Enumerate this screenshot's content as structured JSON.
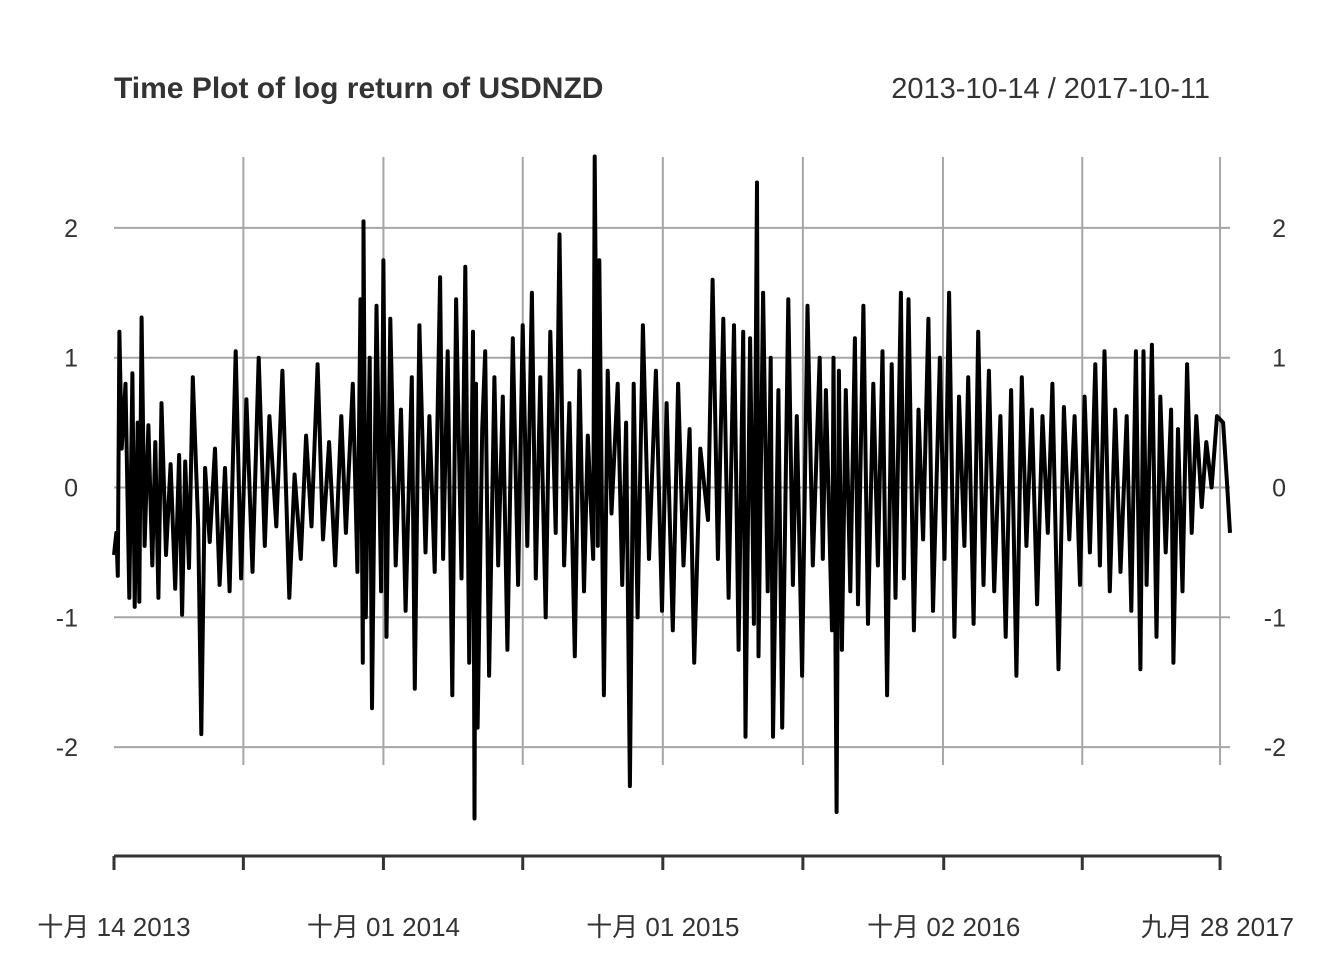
{
  "chart_data": {
    "type": "line",
    "title": "Time Plot of log return of USDNZD",
    "date_range": "2013-10-14 / 2017-10-11",
    "start_date": "2013-10-14",
    "end_date": "2017-10-11",
    "ylim": [
      -2.6,
      2.6
    ],
    "y_ticks": [
      {
        "value": 2,
        "label": "2"
      },
      {
        "value": 1,
        "label": "1"
      },
      {
        "value": 0,
        "label": "0"
      },
      {
        "value": -1,
        "label": "-1"
      },
      {
        "value": -2,
        "label": "-2"
      }
    ],
    "grid_dates": [
      "2014-04-01",
      "2014-10-01",
      "2015-04-01",
      "2015-10-01",
      "2016-04-01",
      "2016-10-01",
      "2017-04-01",
      "2017-09-28"
    ],
    "x_ticks": [
      {
        "date": "2013-10-14",
        "label": "十月 14 2013"
      },
      {
        "date": "2014-10-01",
        "label": "十月 01 2014"
      },
      {
        "date": "2015-10-01",
        "label": "十月 01 2015"
      },
      {
        "date": "2016-10-02",
        "label": "十月 02 2016"
      },
      {
        "date": "2017-09-28",
        "label": "九月 28 2017"
      }
    ],
    "x_minor_ticks": [
      "2014-04-01",
      "2015-04-01",
      "2016-04-01",
      "2017-04-01"
    ],
    "grid": true,
    "series": [
      {
        "color": "#000000",
        "points": [
          [
            "2013-10-14",
            -0.52
          ],
          [
            "2013-10-17",
            -0.35
          ],
          [
            "2013-10-19",
            -0.68
          ],
          [
            "2013-10-21",
            1.2
          ],
          [
            "2013-10-24",
            0.3
          ],
          [
            "2013-10-29",
            0.8
          ],
          [
            "2013-11-03",
            -0.85
          ],
          [
            "2013-11-07",
            0.88
          ],
          [
            "2013-11-10",
            -0.92
          ],
          [
            "2013-11-14",
            0.5
          ],
          [
            "2013-11-16",
            -0.88
          ],
          [
            "2013-11-19",
            1.31
          ],
          [
            "2013-11-23",
            -0.45
          ],
          [
            "2013-11-28",
            0.48
          ],
          [
            "2013-12-03",
            -0.6
          ],
          [
            "2013-12-07",
            0.35
          ],
          [
            "2013-12-11",
            -0.85
          ],
          [
            "2013-12-15",
            0.65
          ],
          [
            "2013-12-21",
            -0.52
          ],
          [
            "2013-12-27",
            0.18
          ],
          [
            "2014-01-02",
            -0.78
          ],
          [
            "2014-01-07",
            0.25
          ],
          [
            "2014-01-11",
            -0.98
          ],
          [
            "2014-01-15",
            0.2
          ],
          [
            "2014-01-20",
            -0.62
          ],
          [
            "2014-01-25",
            0.85
          ],
          [
            "2014-02-01",
            -0.3
          ],
          [
            "2014-02-05",
            -1.9
          ],
          [
            "2014-02-10",
            0.15
          ],
          [
            "2014-02-16",
            -0.42
          ],
          [
            "2014-02-23",
            0.3
          ],
          [
            "2014-03-01",
            -0.75
          ],
          [
            "2014-03-08",
            0.15
          ],
          [
            "2014-03-14",
            -0.8
          ],
          [
            "2014-03-22",
            1.05
          ],
          [
            "2014-03-29",
            -0.7
          ],
          [
            "2014-04-05",
            0.68
          ],
          [
            "2014-04-13",
            -0.65
          ],
          [
            "2014-04-21",
            1.0
          ],
          [
            "2014-04-29",
            -0.45
          ],
          [
            "2014-05-05",
            0.55
          ],
          [
            "2014-05-14",
            -0.3
          ],
          [
            "2014-05-22",
            0.9
          ],
          [
            "2014-05-31",
            -0.85
          ],
          [
            "2014-06-07",
            0.1
          ],
          [
            "2014-06-15",
            -0.55
          ],
          [
            "2014-06-22",
            0.4
          ],
          [
            "2014-06-29",
            -0.3
          ],
          [
            "2014-07-07",
            0.95
          ],
          [
            "2014-07-14",
            -0.4
          ],
          [
            "2014-07-22",
            0.35
          ],
          [
            "2014-07-30",
            -0.6
          ],
          [
            "2014-08-07",
            0.55
          ],
          [
            "2014-08-13",
            -0.35
          ],
          [
            "2014-08-22",
            0.8
          ],
          [
            "2014-08-28",
            -0.65
          ],
          [
            "2014-09-01",
            1.45
          ],
          [
            "2014-09-04",
            -1.35
          ],
          [
            "2014-09-05",
            2.05
          ],
          [
            "2014-09-08",
            -1.0
          ],
          [
            "2014-09-13",
            1.0
          ],
          [
            "2014-09-16",
            -1.7
          ],
          [
            "2014-09-22",
            1.4
          ],
          [
            "2014-09-28",
            -0.8
          ],
          [
            "2014-10-01",
            1.75
          ],
          [
            "2014-10-05",
            -1.15
          ],
          [
            "2014-10-10",
            1.3
          ],
          [
            "2014-10-17",
            -0.6
          ],
          [
            "2014-10-24",
            0.6
          ],
          [
            "2014-10-30",
            -0.95
          ],
          [
            "2014-11-07",
            0.85
          ],
          [
            "2014-11-11",
            -1.55
          ],
          [
            "2014-11-17",
            1.25
          ],
          [
            "2014-11-25",
            -0.5
          ],
          [
            "2014-11-30",
            0.55
          ],
          [
            "2014-12-07",
            -0.65
          ],
          [
            "2014-12-14",
            1.62
          ],
          [
            "2014-12-18",
            -0.55
          ],
          [
            "2014-12-24",
            1.05
          ],
          [
            "2014-12-30",
            -1.6
          ],
          [
            "2015-01-04",
            1.45
          ],
          [
            "2015-01-11",
            -0.7
          ],
          [
            "2015-01-16",
            1.7
          ],
          [
            "2015-01-21",
            -1.35
          ],
          [
            "2015-01-26",
            1.2
          ],
          [
            "2015-01-28",
            -2.55
          ],
          [
            "2015-01-30",
            0.8
          ],
          [
            "2015-02-01",
            -1.85
          ],
          [
            "2015-02-07",
            0.45
          ],
          [
            "2015-02-11",
            1.05
          ],
          [
            "2015-02-16",
            -1.45
          ],
          [
            "2015-02-23",
            0.85
          ],
          [
            "2015-02-28",
            -0.6
          ],
          [
            "2015-03-06",
            0.7
          ],
          [
            "2015-03-12",
            -1.25
          ],
          [
            "2015-03-19",
            1.15
          ],
          [
            "2015-03-26",
            -0.75
          ],
          [
            "2015-04-01",
            1.25
          ],
          [
            "2015-04-07",
            -0.45
          ],
          [
            "2015-04-13",
            1.5
          ],
          [
            "2015-04-18",
            -0.7
          ],
          [
            "2015-04-24",
            0.85
          ],
          [
            "2015-05-01",
            -1.0
          ],
          [
            "2015-05-07",
            1.2
          ],
          [
            "2015-05-14",
            -0.35
          ],
          [
            "2015-05-19",
            1.95
          ],
          [
            "2015-05-25",
            -0.6
          ],
          [
            "2015-06-01",
            0.65
          ],
          [
            "2015-06-08",
            -1.3
          ],
          [
            "2015-06-14",
            0.9
          ],
          [
            "2015-06-20",
            -0.8
          ],
          [
            "2015-06-25",
            0.4
          ],
          [
            "2015-07-02",
            -0.55
          ],
          [
            "2015-07-04",
            2.55
          ],
          [
            "2015-07-08",
            -0.45
          ],
          [
            "2015-07-10",
            1.75
          ],
          [
            "2015-07-16",
            -1.6
          ],
          [
            "2015-07-21",
            0.9
          ],
          [
            "2015-07-26",
            -0.2
          ],
          [
            "2015-08-03",
            0.8
          ],
          [
            "2015-08-09",
            -0.75
          ],
          [
            "2015-08-14",
            0.5
          ],
          [
            "2015-08-19",
            -2.3
          ],
          [
            "2015-08-24",
            0.8
          ],
          [
            "2015-08-29",
            -1.0
          ],
          [
            "2015-09-05",
            1.25
          ],
          [
            "2015-09-13",
            -0.55
          ],
          [
            "2015-09-22",
            0.9
          ],
          [
            "2015-09-30",
            -0.95
          ],
          [
            "2015-10-06",
            0.65
          ],
          [
            "2015-10-14",
            -1.1
          ],
          [
            "2015-10-21",
            0.8
          ],
          [
            "2015-10-28",
            -0.6
          ],
          [
            "2015-11-05",
            0.45
          ],
          [
            "2015-11-11",
            -1.35
          ],
          [
            "2015-11-19",
            0.3
          ],
          [
            "2015-11-29",
            -0.25
          ],
          [
            "2015-12-05",
            1.6
          ],
          [
            "2015-12-12",
            -0.55
          ],
          [
            "2015-12-19",
            1.3
          ],
          [
            "2015-12-26",
            -0.85
          ],
          [
            "2016-01-02",
            1.25
          ],
          [
            "2016-01-08",
            -1.25
          ],
          [
            "2016-01-14",
            1.2
          ],
          [
            "2016-01-17",
            -1.92
          ],
          [
            "2016-01-23",
            1.15
          ],
          [
            "2016-01-28",
            -1.05
          ],
          [
            "2016-02-01",
            2.35
          ],
          [
            "2016-02-03",
            -1.3
          ],
          [
            "2016-02-09",
            1.5
          ],
          [
            "2016-02-15",
            -0.8
          ],
          [
            "2016-02-19",
            1.0
          ],
          [
            "2016-02-22",
            -1.92
          ],
          [
            "2016-02-29",
            0.75
          ],
          [
            "2016-03-05",
            -1.85
          ],
          [
            "2016-03-13",
            1.45
          ],
          [
            "2016-03-19",
            -0.75
          ],
          [
            "2016-03-24",
            0.55
          ],
          [
            "2016-03-31",
            -1.45
          ],
          [
            "2016-04-07",
            1.4
          ],
          [
            "2016-04-14",
            -0.6
          ],
          [
            "2016-04-23",
            1.0
          ],
          [
            "2016-04-27",
            -0.55
          ],
          [
            "2016-05-01",
            0.75
          ],
          [
            "2016-05-09",
            -1.1
          ],
          [
            "2016-05-11",
            1.0
          ],
          [
            "2016-05-15",
            -2.5
          ],
          [
            "2016-05-18",
            0.9
          ],
          [
            "2016-05-22",
            -1.25
          ],
          [
            "2016-05-27",
            0.75
          ],
          [
            "2016-06-02",
            -0.8
          ],
          [
            "2016-06-08",
            1.15
          ],
          [
            "2016-06-12",
            -0.9
          ],
          [
            "2016-06-19",
            1.4
          ],
          [
            "2016-06-25",
            -1.05
          ],
          [
            "2016-07-02",
            0.8
          ],
          [
            "2016-07-08",
            -0.6
          ],
          [
            "2016-07-14",
            1.05
          ],
          [
            "2016-07-20",
            -1.6
          ],
          [
            "2016-07-26",
            0.95
          ],
          [
            "2016-07-31",
            -0.85
          ],
          [
            "2016-08-07",
            1.5
          ],
          [
            "2016-08-11",
            -0.7
          ],
          [
            "2016-08-17",
            1.45
          ],
          [
            "2016-08-24",
            -1.1
          ],
          [
            "2016-08-30",
            0.6
          ],
          [
            "2016-09-05",
            -0.4
          ],
          [
            "2016-09-12",
            1.3
          ],
          [
            "2016-09-18",
            -0.95
          ],
          [
            "2016-09-27",
            1.0
          ],
          [
            "2016-10-03",
            -0.55
          ],
          [
            "2016-10-09",
            1.5
          ],
          [
            "2016-10-16",
            -1.15
          ],
          [
            "2016-10-22",
            0.7
          ],
          [
            "2016-10-29",
            -0.45
          ],
          [
            "2016-11-03",
            0.85
          ],
          [
            "2016-11-10",
            -1.05
          ],
          [
            "2016-11-16",
            1.2
          ],
          [
            "2016-11-23",
            -0.75
          ],
          [
            "2016-11-30",
            0.9
          ],
          [
            "2016-12-07",
            -0.8
          ],
          [
            "2016-12-15",
            0.55
          ],
          [
            "2016-12-22",
            -1.15
          ],
          [
            "2016-12-29",
            0.75
          ],
          [
            "2017-01-05",
            -1.45
          ],
          [
            "2017-01-12",
            0.85
          ],
          [
            "2017-01-18",
            -0.45
          ],
          [
            "2017-01-25",
            0.6
          ],
          [
            "2017-02-01",
            -0.9
          ],
          [
            "2017-02-08",
            0.55
          ],
          [
            "2017-02-15",
            -0.35
          ],
          [
            "2017-02-21",
            0.8
          ],
          [
            "2017-03-01",
            -1.4
          ],
          [
            "2017-03-08",
            0.62
          ],
          [
            "2017-03-15",
            -0.4
          ],
          [
            "2017-03-22",
            0.55
          ],
          [
            "2017-03-29",
            -0.75
          ],
          [
            "2017-04-04",
            0.7
          ],
          [
            "2017-04-11",
            -0.5
          ],
          [
            "2017-04-18",
            0.95
          ],
          [
            "2017-04-24",
            -0.6
          ],
          [
            "2017-04-30",
            1.05
          ],
          [
            "2017-05-07",
            -0.8
          ],
          [
            "2017-05-14",
            0.6
          ],
          [
            "2017-05-21",
            -0.65
          ],
          [
            "2017-05-29",
            0.55
          ],
          [
            "2017-06-04",
            -0.95
          ],
          [
            "2017-06-10",
            1.05
          ],
          [
            "2017-06-16",
            -1.4
          ],
          [
            "2017-06-20",
            1.05
          ],
          [
            "2017-06-24",
            -0.75
          ],
          [
            "2017-07-01",
            1.1
          ],
          [
            "2017-07-07",
            -1.15
          ],
          [
            "2017-07-12",
            0.7
          ],
          [
            "2017-07-19",
            -0.5
          ],
          [
            "2017-07-26",
            0.6
          ],
          [
            "2017-07-29",
            -1.35
          ],
          [
            "2017-08-04",
            0.45
          ],
          [
            "2017-08-10",
            -0.8
          ],
          [
            "2017-08-16",
            0.95
          ],
          [
            "2017-08-22",
            -0.35
          ],
          [
            "2017-08-28",
            0.55
          ],
          [
            "2017-09-04",
            -0.15
          ],
          [
            "2017-09-10",
            0.35
          ],
          [
            "2017-09-17",
            0.0
          ],
          [
            "2017-09-24",
            0.55
          ],
          [
            "2017-10-02",
            0.5
          ],
          [
            "2017-10-07",
            0.05
          ],
          [
            "2017-10-11",
            -0.35
          ]
        ]
      }
    ]
  }
}
